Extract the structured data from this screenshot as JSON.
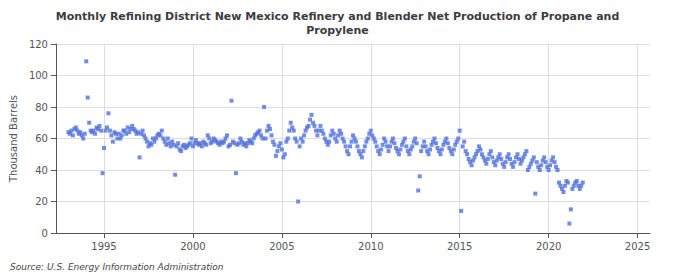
{
  "chart_data": {
    "type": "scatter",
    "title": "Monthly Refining District New Mexico Refinery and Blender Net Production of Propane and\nPropylene",
    "ylabel": "Thousand Barrels",
    "annotation": "Source: U.S. Energy Information Administration",
    "marker": "square",
    "grid": true,
    "xlim": [
      1992.3,
      2025.7
    ],
    "xticks": [
      1995,
      2000,
      2005,
      2010,
      2015,
      2020,
      2025
    ],
    "ylim": [
      0,
      120
    ],
    "yticks": [
      0,
      20,
      40,
      60,
      80,
      100,
      120
    ],
    "x": [
      1993.0,
      1993.083,
      1993.167,
      1993.25,
      1993.333,
      1993.417,
      1993.5,
      1993.583,
      1993.667,
      1993.75,
      1993.833,
      1993.917,
      1994.0,
      1994.083,
      1994.167,
      1994.25,
      1994.333,
      1994.417,
      1994.5,
      1994.583,
      1994.667,
      1994.75,
      1994.833,
      1994.917,
      1995.0,
      1995.083,
      1995.167,
      1995.25,
      1995.333,
      1995.417,
      1995.5,
      1995.583,
      1995.667,
      1995.75,
      1995.833,
      1995.917,
      1996.0,
      1996.083,
      1996.167,
      1996.25,
      1996.333,
      1996.417,
      1996.5,
      1996.583,
      1996.667,
      1996.75,
      1996.833,
      1996.917,
      1997.0,
      1997.083,
      1997.167,
      1997.25,
      1997.333,
      1997.417,
      1997.5,
      1997.583,
      1997.667,
      1997.75,
      1997.833,
      1997.917,
      1998.0,
      1998.083,
      1998.167,
      1998.25,
      1998.333,
      1998.417,
      1998.5,
      1998.583,
      1998.667,
      1998.75,
      1998.833,
      1998.917,
      1999.0,
      1999.083,
      1999.167,
      1999.25,
      1999.333,
      1999.417,
      1999.5,
      1999.583,
      1999.667,
      1999.75,
      1999.833,
      1999.917,
      2000.0,
      2000.083,
      2000.167,
      2000.25,
      2000.333,
      2000.417,
      2000.5,
      2000.583,
      2000.667,
      2000.75,
      2000.833,
      2000.917,
      2001.0,
      2001.083,
      2001.167,
      2001.25,
      2001.333,
      2001.417,
      2001.5,
      2001.583,
      2001.667,
      2001.75,
      2001.833,
      2001.917,
      2002.0,
      2002.083,
      2002.167,
      2002.25,
      2002.333,
      2002.417,
      2002.5,
      2002.583,
      2002.667,
      2002.75,
      2002.833,
      2002.917,
      2003.0,
      2003.083,
      2003.167,
      2003.25,
      2003.333,
      2003.417,
      2003.5,
      2003.583,
      2003.667,
      2003.75,
      2003.833,
      2003.917,
      2004.0,
      2004.083,
      2004.167,
      2004.25,
      2004.333,
      2004.417,
      2004.5,
      2004.583,
      2004.667,
      2004.75,
      2004.833,
      2004.917,
      2005.0,
      2005.083,
      2005.167,
      2005.25,
      2005.333,
      2005.417,
      2005.5,
      2005.583,
      2005.667,
      2005.75,
      2005.833,
      2005.917,
      2006.0,
      2006.083,
      2006.167,
      2006.25,
      2006.333,
      2006.417,
      2006.5,
      2006.583,
      2006.667,
      2006.75,
      2006.833,
      2006.917,
      2007.0,
      2007.083,
      2007.167,
      2007.25,
      2007.333,
      2007.417,
      2007.5,
      2007.583,
      2007.667,
      2007.75,
      2007.833,
      2007.917,
      2008.0,
      2008.083,
      2008.167,
      2008.25,
      2008.333,
      2008.417,
      2008.5,
      2008.583,
      2008.667,
      2008.75,
      2008.833,
      2008.917,
      2009.0,
      2009.083,
      2009.167,
      2009.25,
      2009.333,
      2009.417,
      2009.5,
      2009.583,
      2009.667,
      2009.75,
      2009.833,
      2009.917,
      2010.0,
      2010.083,
      2010.167,
      2010.25,
      2010.333,
      2010.417,
      2010.5,
      2010.583,
      2010.667,
      2010.75,
      2010.833,
      2010.917,
      2011.0,
      2011.083,
      2011.167,
      2011.25,
      2011.333,
      2011.417,
      2011.5,
      2011.583,
      2011.667,
      2011.75,
      2011.833,
      2011.917,
      2012.0,
      2012.083,
      2012.167,
      2012.25,
      2012.333,
      2012.417,
      2012.5,
      2012.583,
      2012.667,
      2012.75,
      2012.833,
      2012.917,
      2013.0,
      2013.083,
      2013.167,
      2013.25,
      2013.333,
      2013.417,
      2013.5,
      2013.583,
      2013.667,
      2013.75,
      2013.833,
      2013.917,
      2014.0,
      2014.083,
      2014.167,
      2014.25,
      2014.333,
      2014.417,
      2014.5,
      2014.583,
      2014.667,
      2014.75,
      2014.833,
      2014.917,
      2015.0,
      2015.083,
      2015.167,
      2015.25,
      2015.333,
      2015.417,
      2015.5,
      2015.583,
      2015.667,
      2015.75,
      2015.833,
      2015.917,
      2016.0,
      2016.083,
      2016.167,
      2016.25,
      2016.333,
      2016.417,
      2016.5,
      2016.583,
      2016.667,
      2016.75,
      2016.833,
      2016.917,
      2017.0,
      2017.083,
      2017.167,
      2017.25,
      2017.333,
      2017.417,
      2017.5,
      2017.583,
      2017.667,
      2017.75,
      2017.833,
      2017.917,
      2018.0,
      2018.083,
      2018.167,
      2018.25,
      2018.333,
      2018.417,
      2018.5,
      2018.583,
      2018.667,
      2018.75,
      2018.833,
      2018.917,
      2019.0,
      2019.083,
      2019.167,
      2019.25,
      2019.333,
      2019.417,
      2019.5,
      2019.583,
      2019.667,
      2019.75,
      2019.833,
      2019.917,
      2020.0,
      2020.083,
      2020.167,
      2020.25,
      2020.333,
      2020.417,
      2020.5,
      2020.583,
      2020.667,
      2020.75,
      2020.833,
      2020.917,
      2021.0,
      2021.083,
      2021.167,
      2021.25,
      2021.333,
      2021.417,
      2021.5,
      2021.583,
      2021.667,
      2021.75,
      2021.833,
      2021.917
    ],
    "values": [
      64,
      63,
      65,
      62,
      66,
      67,
      65,
      63,
      64,
      62,
      60,
      63,
      109,
      86,
      70,
      65,
      64,
      65,
      63,
      67,
      66,
      68,
      65,
      38,
      54,
      65,
      67,
      76,
      65,
      62,
      58,
      64,
      63,
      60,
      63,
      60,
      62,
      65,
      65,
      63,
      67,
      64,
      66,
      68,
      66,
      65,
      63,
      64,
      48,
      63,
      65,
      62,
      60,
      58,
      55,
      57,
      56,
      60,
      58,
      60,
      62,
      63,
      62,
      65,
      60,
      58,
      56,
      60,
      57,
      55,
      58,
      56,
      37,
      55,
      57,
      53,
      52,
      55,
      56,
      54,
      55,
      56,
      57,
      60,
      55,
      57,
      59,
      57,
      56,
      57,
      55,
      58,
      57,
      56,
      62,
      60,
      57,
      58,
      60,
      59,
      58,
      57,
      56,
      58,
      57,
      58,
      60,
      62,
      55,
      56,
      84,
      58,
      57,
      38,
      56,
      57,
      60,
      58,
      56,
      57,
      55,
      57,
      59,
      58,
      57,
      60,
      62,
      63,
      64,
      65,
      62,
      60,
      80,
      60,
      65,
      68,
      66,
      62,
      58,
      56,
      49,
      52,
      55,
      57,
      53,
      48,
      50,
      58,
      60,
      65,
      70,
      67,
      65,
      60,
      58,
      20,
      55,
      60,
      58,
      62,
      65,
      67,
      68,
      72,
      75,
      70,
      68,
      65,
      62,
      65,
      68,
      65,
      63,
      60,
      58,
      56,
      58,
      62,
      65,
      63,
      60,
      58,
      62,
      65,
      63,
      60,
      58,
      55,
      52,
      50,
      55,
      58,
      62,
      60,
      58,
      55,
      52,
      50,
      48,
      52,
      55,
      58,
      60,
      63,
      65,
      62,
      60,
      58,
      55,
      52,
      50,
      53,
      56,
      60,
      58,
      55,
      52,
      55,
      58,
      60,
      57,
      54,
      52,
      50,
      53,
      56,
      58,
      60,
      55,
      52,
      50,
      53,
      55,
      58,
      60,
      57,
      27,
      36,
      52,
      55,
      58,
      55,
      52,
      50,
      53,
      56,
      58,
      60,
      57,
      54,
      52,
      50,
      53,
      56,
      58,
      60,
      57,
      54,
      52,
      50,
      53,
      56,
      58,
      60,
      65,
      14,
      55,
      58,
      52,
      50,
      47,
      45,
      43,
      46,
      48,
      50,
      52,
      55,
      53,
      50,
      48,
      46,
      44,
      47,
      50,
      52,
      48,
      45,
      43,
      46,
      48,
      50,
      47,
      44,
      42,
      45,
      48,
      50,
      47,
      44,
      42,
      45,
      48,
      50,
      47,
      44,
      46,
      48,
      50,
      52,
      40,
      42,
      44,
      46,
      48,
      25,
      45,
      42,
      40,
      43,
      46,
      48,
      45,
      42,
      40,
      43,
      46,
      48,
      45,
      42,
      40,
      32,
      30,
      28,
      26,
      30,
      33,
      32,
      6,
      15,
      28,
      30,
      32,
      33,
      30,
      28,
      30,
      32
    ]
  }
}
